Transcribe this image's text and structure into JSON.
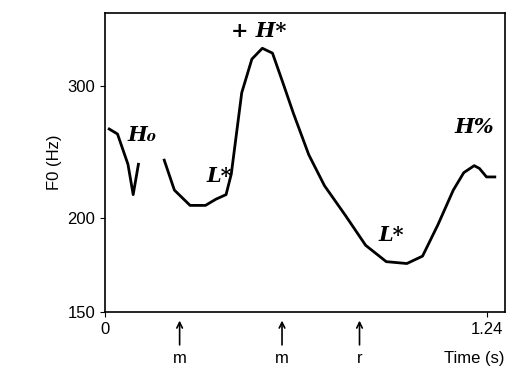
{
  "chart_data": {
    "type": "line",
    "xlabel": "Time (s)",
    "ylabel": "F0 (Hz)",
    "log": "y",
    "color": "#000000",
    "xlim": [
      0,
      1.3
    ],
    "ylim": [
      150,
      375
    ],
    "xticks": [
      0,
      1.24
    ],
    "yticks": [
      150,
      200,
      300
    ],
    "x": [
      0.013,
      0.04,
      0.074,
      0.091,
      0.108,
      0.15,
      0.192,
      0.225,
      0.276,
      0.326,
      0.36,
      0.393,
      0.41,
      0.444,
      0.477,
      0.511,
      0.544,
      0.578,
      0.612,
      0.662,
      0.713,
      0.78,
      0.847,
      0.914,
      0.981,
      1.032,
      1.082,
      1.132,
      1.166,
      1.2,
      1.217,
      1.24,
      1.267
    ],
    "values": [
      263,
      259,
      236,
      215,
      236,
      null,
      239,
      218,
      208,
      208,
      212,
      215,
      229,
      294,
      326,
      337,
      332,
      303,
      276,
      243,
      221,
      202,
      184,
      175,
      174,
      178,
      196,
      218,
      230,
      235,
      233,
      227,
      227
    ],
    "annotations": [
      {
        "text": "H₀",
        "x": 0.12,
        "y": 258
      },
      {
        "text": "L*",
        "x": 0.37,
        "y": 228
      },
      {
        "text": "+ H*",
        "x": 0.5,
        "y": 355
      },
      {
        "text": "L*",
        "x": 0.93,
        "y": 190
      },
      {
        "text": "H%",
        "x": 1.2,
        "y": 265
      }
    ],
    "x_markers": [
      {
        "label": "m",
        "x": 0.242
      },
      {
        "label": "m",
        "x": 0.575
      },
      {
        "label": "r",
        "x": 0.827
      }
    ]
  }
}
